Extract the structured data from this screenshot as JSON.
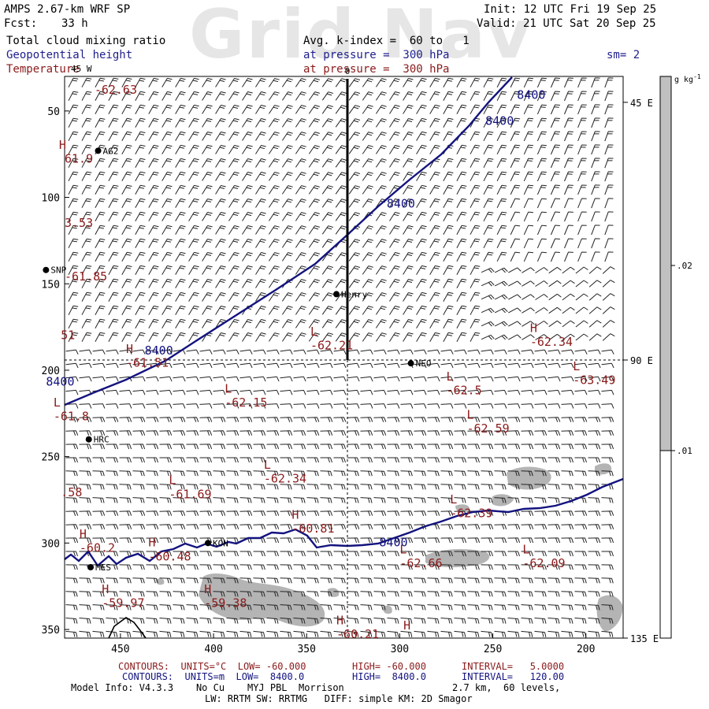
{
  "watermark": "Grid Nav",
  "header": {
    "model": "AMPS 2.67-km WRF SP",
    "fcst_label": "Fcst:",
    "fcst_value": "33 h",
    "init": "Init: 12 UTC Fri 19 Sep 25",
    "valid": "Valid: 21 UTC Sat 20 Sep 25",
    "field1": "Total cloud mixing ratio",
    "field2": "Geopotential height",
    "field3": "Temperature",
    "avg": "Avg. k-index =  60 to   1",
    "pressure1": "at pressure =  300 hPa",
    "pressure2": "at pressure =  300 hPa",
    "sm": "sm= 2"
  },
  "colors": {
    "height_contour": "#13137f",
    "temp_label": "#8b1a1a",
    "cloud_fill": "#b4b4b4",
    "colorbar_gray": "#c0c0c0"
  },
  "colorbar": {
    "unit": "g kg",
    "unit_sup": "-1",
    "ticks": [
      ".02",
      ".01"
    ]
  },
  "chart_data": {
    "type": "heatmap",
    "xlim": [
      480,
      180
    ],
    "ylim": [
      355,
      30
    ],
    "x_ticks": [
      450,
      400,
      350,
      300,
      250,
      200
    ],
    "y_ticks": [
      50,
      100,
      150,
      200,
      250,
      300,
      350
    ],
    "right_labels": [
      "45 E",
      "90 E",
      "135 E"
    ],
    "top_marker": "0",
    "top_left_marker": "45 W",
    "stations": [
      {
        "name": "AG2",
        "x": 462,
        "y": 73
      },
      {
        "name": "SNP",
        "x": 490,
        "y": 142
      },
      {
        "name": "Henry",
        "x": 334,
        "y": 156
      },
      {
        "name": "NEO",
        "x": 294,
        "y": 196
      },
      {
        "name": "HRC",
        "x": 467,
        "y": 240
      },
      {
        "name": "KON",
        "x": 403,
        "y": 300
      },
      {
        "name": "MES",
        "x": 466,
        "y": 314
      }
    ],
    "height_labels": [
      {
        "text": "8400",
        "x": 237,
        "y": 43
      },
      {
        "text": "8400",
        "x": 254,
        "y": 58
      },
      {
        "text": "8400",
        "x": 307,
        "y": 106
      },
      {
        "text": "8400",
        "x": 437,
        "y": 191
      },
      {
        "text": "8400",
        "x": 490,
        "y": 209
      },
      {
        "text": "8400",
        "x": 311,
        "y": 302
      }
    ],
    "temp_labels": [
      {
        "text": "-62.63",
        "x": 464,
        "y": 40
      },
      {
        "text": "H",
        "x": 483,
        "y": 72
      },
      {
        "text": "61.9",
        "x": 480,
        "y": 80
      },
      {
        "text": "3.53",
        "x": 480,
        "y": 117
      },
      {
        "text": "-61.85",
        "x": 480,
        "y": 148
      },
      {
        "text": "51",
        "x": 482,
        "y": 182
      },
      {
        "text": "L",
        "x": 348,
        "y": 180
      },
      {
        "text": "-62.21",
        "x": 348,
        "y": 188
      },
      {
        "text": "H",
        "x": 447,
        "y": 190
      },
      {
        "text": "-61.51",
        "x": 447,
        "y": 198
      },
      {
        "text": "H",
        "x": 230,
        "y": 178
      },
      {
        "text": "-62.34",
        "x": 230,
        "y": 186
      },
      {
        "text": "L",
        "x": 207,
        "y": 200
      },
      {
        "text": "-63.49",
        "x": 207,
        "y": 208
      },
      {
        "text": "L",
        "x": 275,
        "y": 206
      },
      {
        "text": "-62.5",
        "x": 275,
        "y": 214
      },
      {
        "text": "L",
        "x": 264,
        "y": 228
      },
      {
        "text": "-62.59",
        "x": 264,
        "y": 236
      },
      {
        "text": "L",
        "x": 486,
        "y": 221
      },
      {
        "text": "-61.8",
        "x": 486,
        "y": 229
      },
      {
        "text": "L",
        "x": 394,
        "y": 213
      },
      {
        "text": "-62.15",
        "x": 394,
        "y": 221
      },
      {
        "text": "L",
        "x": 373,
        "y": 257
      },
      {
        "text": "-62.34",
        "x": 373,
        "y": 265
      },
      {
        "text": "L",
        "x": 424,
        "y": 266
      },
      {
        "text": "-61.69",
        "x": 424,
        "y": 274
      },
      {
        "text": ".58",
        "x": 482,
        "y": 273
      },
      {
        "text": "L",
        "x": 273,
        "y": 277
      },
      {
        "text": "-62.39",
        "x": 273,
        "y": 285
      },
      {
        "text": "H",
        "x": 358,
        "y": 286
      },
      {
        "text": "-60.81",
        "x": 358,
        "y": 294
      },
      {
        "text": "H",
        "x": 472,
        "y": 297
      },
      {
        "text": "-60.2",
        "x": 472,
        "y": 305
      },
      {
        "text": "H",
        "x": 435,
        "y": 302
      },
      {
        "text": "-60.48",
        "x": 435,
        "y": 310
      },
      {
        "text": "L",
        "x": 300,
        "y": 306
      },
      {
        "text": "-62.66",
        "x": 300,
        "y": 314
      },
      {
        "text": "L",
        "x": 234,
        "y": 306
      },
      {
        "text": "-62.09",
        "x": 234,
        "y": 314
      },
      {
        "text": "H",
        "x": 460,
        "y": 329
      },
      {
        "text": "-59.97",
        "x": 460,
        "y": 337
      },
      {
        "text": "H",
        "x": 405,
        "y": 329
      },
      {
        "text": "-59.38",
        "x": 405,
        "y": 337
      },
      {
        "text": "H",
        "x": 334,
        "y": 347
      },
      {
        "text": "-60.21",
        "x": 334,
        "y": 355
      },
      {
        "text": "H",
        "x": 298,
        "y": 350
      }
    ]
  },
  "footer": {
    "line1_a": "CONTOURS:  UNITS=°C  LOW= -60.000",
    "line1_b": "HIGH= -60.000",
    "line1_c": "INTERVAL=   5.0000",
    "line2_a": "CONTOURS:  UNITS=m  LOW=  8400.0",
    "line2_b": "HIGH=  8400.0",
    "line2_c": "INTERVAL=   120.00",
    "line3_a": "Model Info: V4.3.3    No Cu    MYJ PBL  Morrison",
    "line3_b": "2.7 km,  60 levels,",
    "line4": "LW: RRTM SW: RRTMG   DIFF: simple KM: 2D Smagor"
  }
}
